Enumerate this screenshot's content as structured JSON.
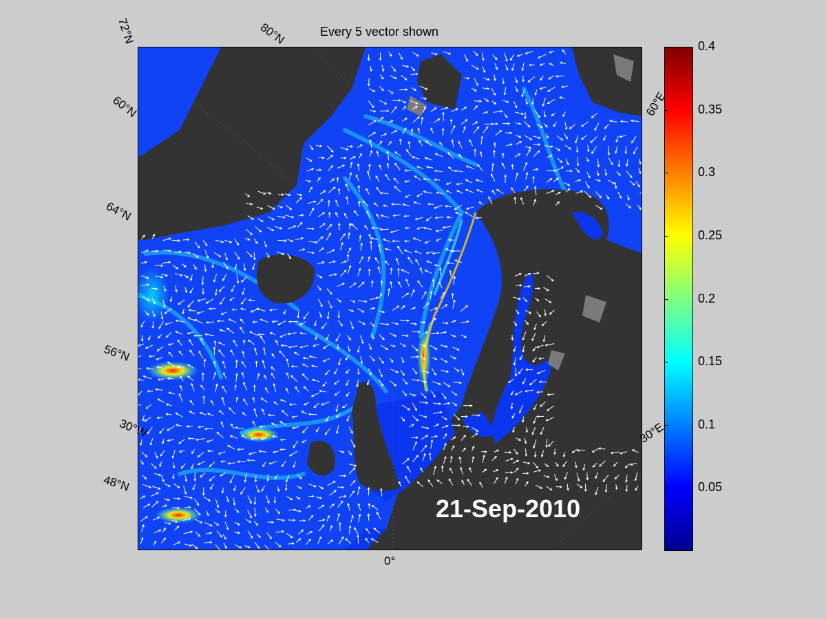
{
  "title": "Every 5 vector shown",
  "date": "21-Sep-2010",
  "latitude_labels": [
    "72°N",
    "80°N",
    "60°N",
    "64°N",
    "56°N",
    "30°W",
    "48°N"
  ],
  "longitude_labels": [
    "0°",
    "60°E",
    "30°E"
  ],
  "colorbar": {
    "ticks": [
      "0.4",
      "0.35",
      "0.3",
      "0.25",
      "0.2",
      "0.15",
      "0.1",
      "0.05"
    ],
    "min": 0,
    "max": 0.4,
    "colormap": "jet"
  },
  "colors": {
    "background": "#cccccc",
    "land": "#333333",
    "ice_land": "#7a7a7a",
    "ocean_low": "#0a2cff",
    "ocean_mid": "#1a6bff",
    "current_high": "#ff3000",
    "arrows": "#ffffff"
  }
}
